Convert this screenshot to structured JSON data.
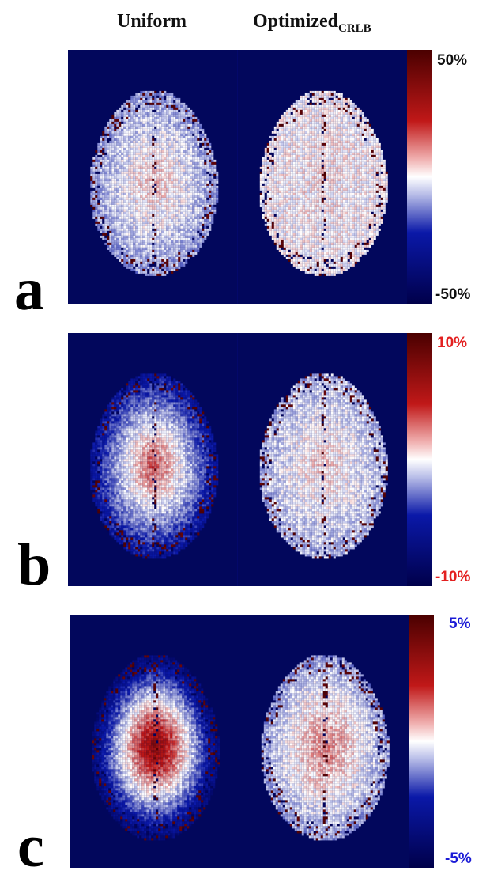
{
  "headers": {
    "uniform": "Uniform",
    "optimized_main": "Optimized",
    "optimized_sub": "CRLB"
  },
  "panels": [
    {
      "letter": "a",
      "max_label": "50%",
      "min_label": "-50%",
      "label_color": "#111111",
      "uniform_center": 0.12,
      "uniform_edge": -0.2,
      "optimized_center": 0.04,
      "optimized_edge": 0.0
    },
    {
      "letter": "b",
      "max_label": "10%",
      "min_label": "-10%",
      "label_color": "#e32020",
      "uniform_center": 0.35,
      "uniform_edge": -0.55,
      "optimized_center": 0.1,
      "optimized_edge": -0.15
    },
    {
      "letter": "c",
      "max_label": "5%",
      "min_label": "-5%",
      "label_color": "#1a1ad6",
      "uniform_center": 0.75,
      "uniform_edge": -0.75,
      "optimized_center": 0.25,
      "optimized_edge": -0.2
    }
  ],
  "colors": {
    "background": "#02075c",
    "colormap": [
      "#00004a",
      "#0a18a8",
      "#ffffff",
      "#c01818",
      "#4a0000"
    ]
  }
}
